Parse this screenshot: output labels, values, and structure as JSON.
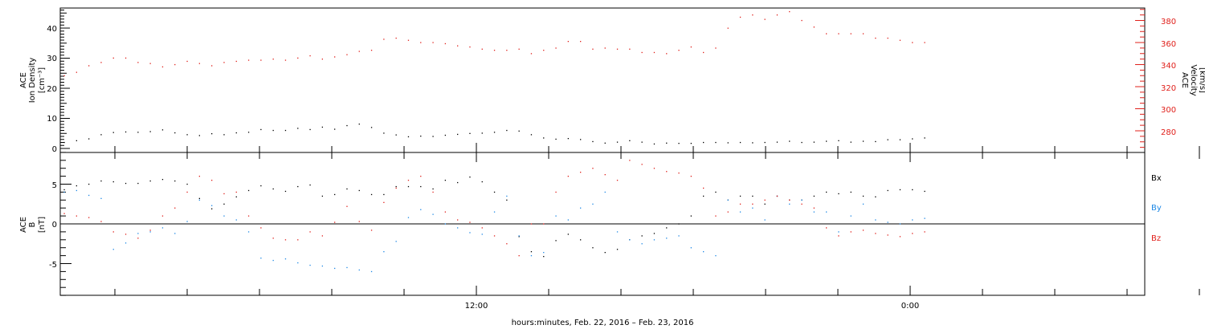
{
  "chart_data": [
    {
      "type": "scatter",
      "xlabel": "hours:minutes, Feb. 22, 2016 – Feb. 23, 2016",
      "x_ticks": [
        "12:00",
        "0:00"
      ],
      "ylabel_left": [
        "ACE",
        "Ion Density",
        "[cm⁻³]"
      ],
      "ylabel_right": [
        "ACE",
        "Velocity",
        "[km/s]"
      ],
      "yticks_left": [
        "0",
        "10",
        "20",
        "30",
        "40"
      ],
      "yticks_right": [
        "280",
        "300",
        "320",
        "340",
        "360",
        "380"
      ],
      "ylim_left": [
        -1,
        47
      ],
      "ylim_right": [
        263,
        393
      ],
      "colors": {
        "density": "#000000",
        "velocity": "#e0201b"
      },
      "series": [
        {
          "axis": "left",
          "x": [
            0,
            1,
            2,
            3,
            4,
            5,
            6,
            7,
            8,
            9,
            10,
            11,
            12,
            13,
            14,
            15,
            16,
            17,
            18,
            19,
            20,
            21,
            22,
            23,
            24,
            25,
            26,
            27,
            28,
            29,
            30,
            31,
            32,
            33,
            34,
            35,
            36,
            37,
            38,
            39,
            40,
            41,
            42,
            43,
            44,
            45,
            46,
            47,
            48,
            49,
            50,
            51,
            52,
            53,
            54,
            55,
            56,
            57,
            58,
            59,
            60,
            61,
            62,
            63,
            64,
            65,
            66,
            67,
            68,
            69,
            70
          ],
          "values": [
            2.0,
            2.6,
            3.2,
            4.6,
            5.3,
            5.5,
            5.4,
            5.6,
            6.2,
            5.2,
            4.6,
            4.3,
            4.9,
            4.6,
            5.2,
            5.4,
            6.3,
            6.0,
            6.0,
            6.7,
            6.3,
            7.1,
            6.4,
            7.6,
            8.1,
            7.0,
            5.1,
            4.5,
            3.9,
            4.1,
            4.0,
            4.4,
            4.7,
            5.0,
            5.1,
            5.4,
            6.0,
            5.8,
            4.6,
            3.5,
            3.1,
            3.3,
            3.0,
            2.3,
            1.8,
            2.1,
            2.6,
            2.1,
            1.5,
            1.8,
            1.7,
            1.7,
            2.0,
            2.0,
            1.9,
            2.0,
            1.9,
            2.0,
            2.1,
            2.4,
            2.0,
            2.1,
            2.4,
            2.6,
            2.1,
            2.4,
            2.3,
            2.9,
            2.9,
            3.2,
            3.5
          ]
        },
        {
          "axis": "right",
          "x": [
            0,
            1,
            2,
            3,
            4,
            5,
            6,
            7,
            8,
            9,
            10,
            11,
            12,
            13,
            14,
            15,
            16,
            17,
            18,
            19,
            20,
            21,
            22,
            23,
            24,
            25,
            26,
            27,
            28,
            29,
            30,
            31,
            32,
            33,
            34,
            35,
            36,
            37,
            38,
            39,
            40,
            41,
            42,
            43,
            44,
            45,
            46,
            47,
            48,
            49,
            50,
            51,
            52,
            53,
            54,
            55,
            56,
            57,
            58,
            59,
            60,
            61,
            62,
            63,
            64,
            65,
            66,
            67,
            68,
            69,
            70
          ],
          "values": [
            330,
            333,
            339,
            342,
            346,
            346,
            342,
            341,
            338,
            340,
            343,
            341,
            339,
            342,
            343,
            344,
            344,
            345,
            344,
            346,
            348,
            345,
            347,
            349,
            352,
            353,
            363,
            364,
            362,
            360,
            360,
            359,
            357,
            356,
            354,
            353,
            353,
            354,
            350,
            353,
            355,
            361,
            361,
            354,
            355,
            354,
            354,
            351,
            351,
            350,
            353,
            356,
            351,
            355,
            373,
            383,
            385,
            381,
            385,
            388,
            380,
            374,
            368,
            368,
            368,
            368,
            364,
            364,
            362,
            360,
            360
          ]
        }
      ]
    },
    {
      "type": "scatter",
      "xlabel": "hours:minutes, Feb. 22, 2016 – Feb. 23, 2016",
      "x_ticks": [
        "12:00",
        "0:00"
      ],
      "ylabel": [
        "ACE",
        "B",
        "[nT]"
      ],
      "yticks": [
        "-5",
        "0",
        "5"
      ],
      "ylim": [
        -9.5,
        9.5
      ],
      "legend": [
        "Bx",
        "By",
        "Bz"
      ],
      "legend_position": "right",
      "colors": {
        "Bx": "#000000",
        "By": "#1e88e5",
        "Bz": "#e0201b"
      },
      "series": [
        {
          "name": "Bx",
          "x": [
            0,
            1,
            2,
            3,
            4,
            5,
            6,
            7,
            8,
            9,
            10,
            11,
            12,
            13,
            14,
            15,
            16,
            17,
            18,
            19,
            20,
            21,
            22,
            23,
            24,
            25,
            26,
            27,
            28,
            29,
            30,
            31,
            32,
            33,
            34,
            35,
            36,
            37,
            38,
            39,
            40,
            41,
            42,
            43,
            44,
            45,
            46,
            47,
            48,
            49,
            50,
            51,
            52,
            53,
            54,
            55,
            56,
            57,
            58,
            59,
            60,
            61,
            62,
            63,
            64,
            65,
            66,
            67,
            68,
            69,
            70
          ],
          "values": [
            4.3,
            4.8,
            5.0,
            5.4,
            5.3,
            5.1,
            5.1,
            5.4,
            5.6,
            5.4,
            5.0,
            3.2,
            1.9,
            2.5,
            3.4,
            4.2,
            4.8,
            4.4,
            4.1,
            4.7,
            4.9,
            3.5,
            3.7,
            4.4,
            4.2,
            3.7,
            3.7,
            4.7,
            4.7,
            4.7,
            4.4,
            5.5,
            5.2,
            5.9,
            5.3,
            4.0,
            3.0,
            -1.6,
            -3.5,
            -4.1,
            -2.1,
            -1.3,
            -2.0,
            -3.0,
            -3.6,
            -3.2,
            -2.0,
            -1.5,
            -1.2,
            -0.5,
            0.0,
            1.0,
            3.5,
            4.0,
            3.0,
            3.5,
            3.5,
            2.5,
            3.5,
            3.0,
            3.0,
            3.5,
            4.0,
            3.8,
            4.0,
            3.5,
            3.4,
            4.2,
            4.3,
            4.3,
            4.1
          ]
        },
        {
          "name": "By",
          "x": [
            0,
            1,
            2,
            3,
            4,
            5,
            6,
            7,
            8,
            9,
            10,
            11,
            12,
            13,
            14,
            15,
            16,
            17,
            18,
            19,
            20,
            21,
            22,
            23,
            24,
            25,
            26,
            27,
            28,
            29,
            30,
            31,
            32,
            33,
            34,
            35,
            36,
            37,
            38,
            39,
            40,
            41,
            42,
            43,
            44,
            45,
            46,
            47,
            48,
            49,
            50,
            51,
            52,
            53,
            54,
            55,
            56,
            57,
            58,
            59,
            60,
            61,
            62,
            63,
            64,
            65,
            66,
            67,
            68,
            69,
            70
          ],
          "values": [
            4.0,
            4.2,
            3.6,
            3.2,
            -3.2,
            -2.4,
            -1.2,
            -1.0,
            -0.5,
            -1.2,
            0.3,
            3.0,
            2.3,
            1.0,
            0.5,
            -1.0,
            -4.3,
            -4.6,
            -4.4,
            -4.9,
            -5.2,
            -5.3,
            -5.6,
            -5.5,
            -5.8,
            -6.0,
            -3.5,
            -2.2,
            0.8,
            1.8,
            1.2,
            0.0,
            -0.5,
            -1.1,
            -1.3,
            1.5,
            3.5,
            -1.5,
            -4.0,
            -3.6,
            1.0,
            0.5,
            2.0,
            2.5,
            4.0,
            -1.0,
            -2.0,
            -2.5,
            -2.0,
            -1.8,
            -1.5,
            -3.0,
            -3.5,
            -4.0,
            3.0,
            1.5,
            2.0,
            0.5,
            3.5,
            2.5,
            3.0,
            1.5,
            1.5,
            -1.0,
            1.0,
            2.5,
            0.5,
            0.2,
            0.0,
            0.5,
            0.7
          ]
        },
        {
          "name": "Bz",
          "x": [
            0,
            1,
            2,
            3,
            4,
            5,
            6,
            7,
            8,
            9,
            10,
            11,
            12,
            13,
            14,
            15,
            16,
            17,
            18,
            19,
            20,
            21,
            22,
            23,
            24,
            25,
            26,
            27,
            28,
            29,
            30,
            31,
            32,
            33,
            34,
            35,
            36,
            37,
            38,
            39,
            40,
            41,
            42,
            43,
            44,
            45,
            46,
            47,
            48,
            49,
            50,
            51,
            52,
            53,
            54,
            55,
            56,
            57,
            58,
            59,
            60,
            61,
            62,
            63,
            64,
            65,
            66,
            67,
            68,
            69,
            70
          ],
          "values": [
            1.3,
            1.0,
            0.8,
            0.3,
            -1.0,
            -1.3,
            -1.8,
            -0.8,
            1.0,
            2.0,
            4.0,
            6.0,
            5.5,
            3.8,
            4.0,
            1.0,
            -0.5,
            -1.8,
            -2.0,
            -2.0,
            -1.0,
            -1.5,
            0.2,
            2.2,
            0.3,
            -0.8,
            2.7,
            4.5,
            5.5,
            6.0,
            4.0,
            1.5,
            0.5,
            0.2,
            -0.5,
            -1.5,
            -2.5,
            -4.0,
            0.0,
            0.0,
            4.0,
            6.0,
            6.5,
            7.0,
            6.2,
            5.5,
            8.0,
            7.5,
            7.0,
            6.6,
            6.4,
            6.0,
            4.5,
            1.0,
            1.5,
            2.5,
            2.5,
            3.0,
            3.5,
            3.0,
            2.5,
            2.0,
            -0.5,
            -1.5,
            -1.0,
            -0.8,
            -1.2,
            -1.4,
            -1.6,
            -1.2,
            -1.0
          ]
        }
      ]
    }
  ]
}
